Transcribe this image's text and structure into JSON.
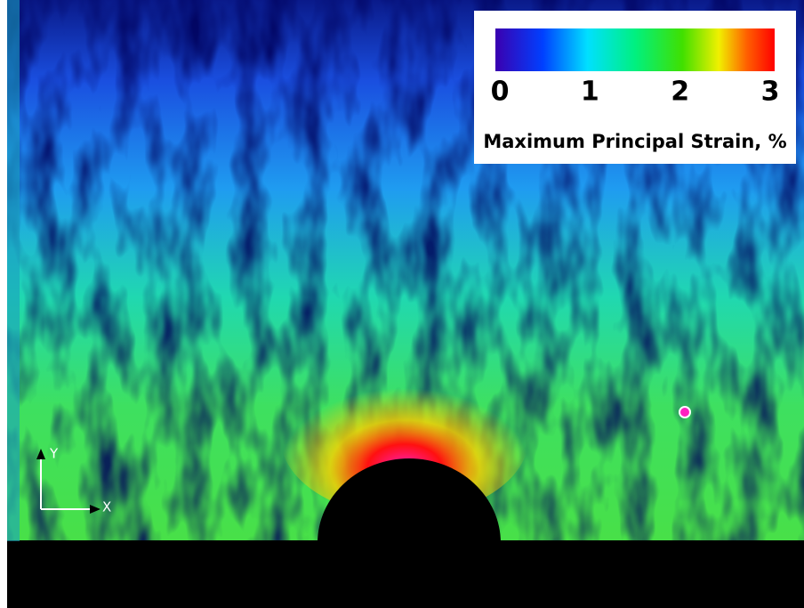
{
  "colorbar": {
    "label": "Maximum Principal Strain, %",
    "ticks": [
      0,
      1,
      2,
      3
    ]
  },
  "axes": {
    "x_label": "X",
    "y_label": "Y"
  }
}
